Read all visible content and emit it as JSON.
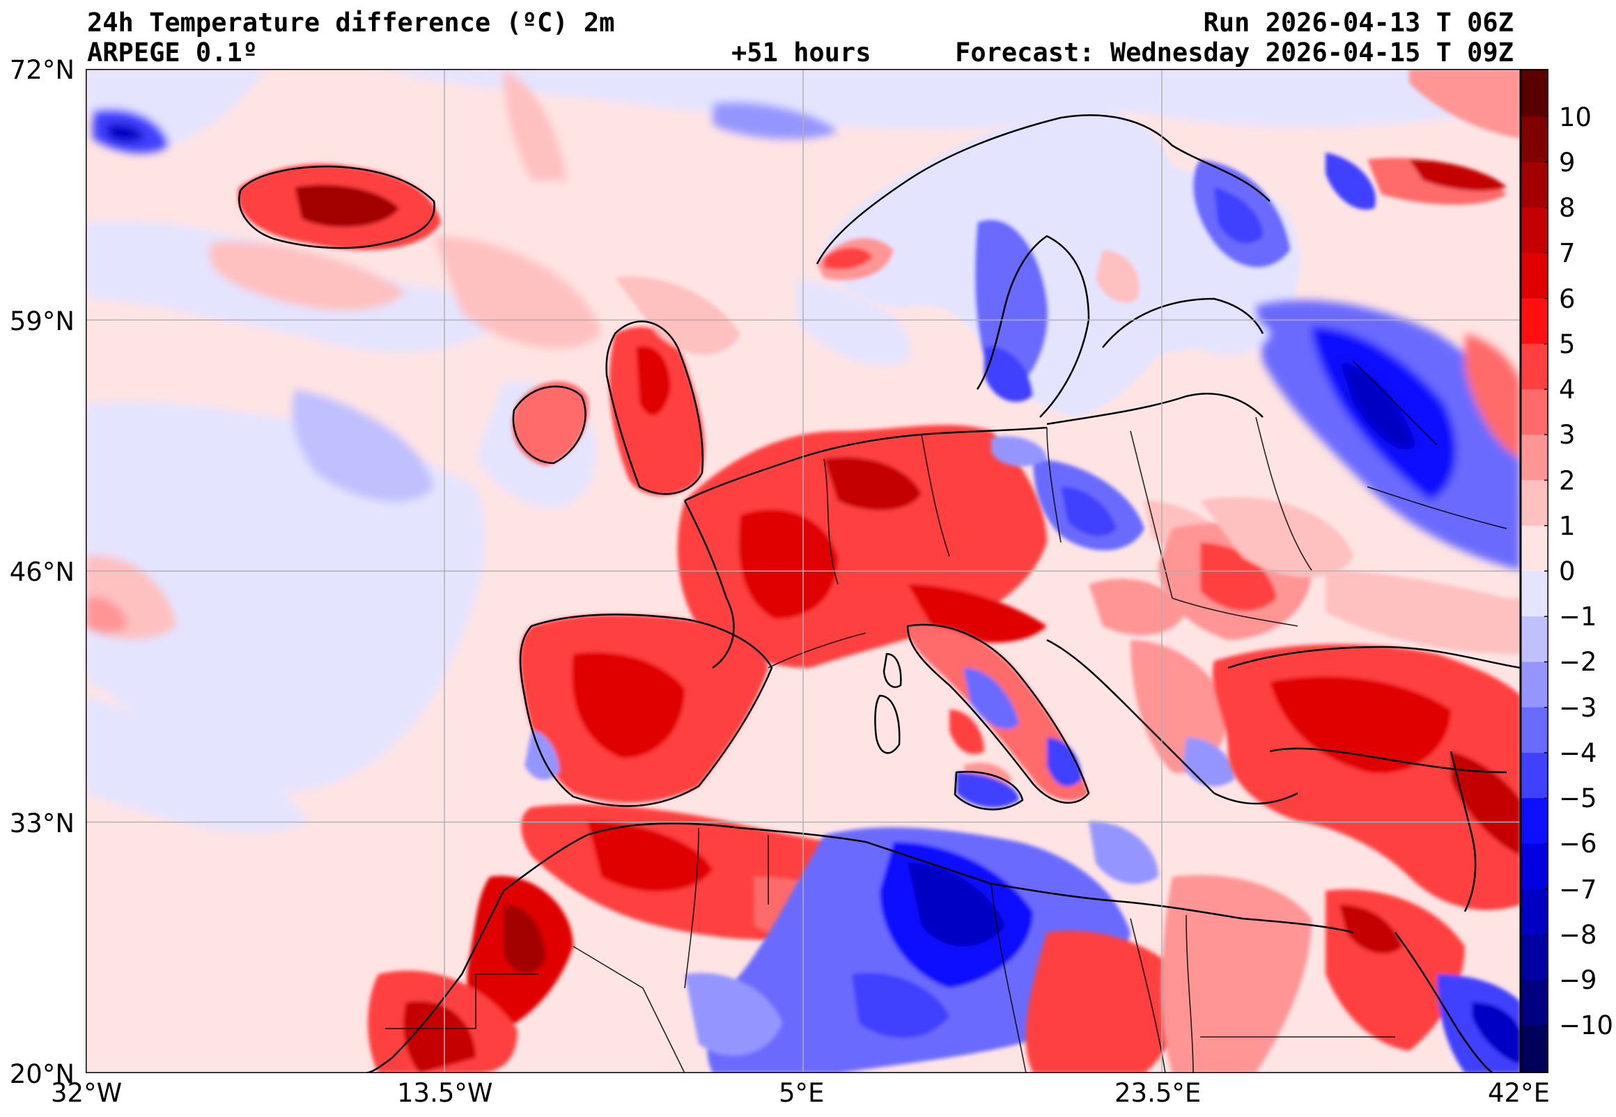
{
  "header": {
    "title": "24h Temperature difference (ºC) 2m",
    "model": "ARPEGE 0.1º",
    "lead_time": "+51 hours",
    "run": "Run 2026-04-13 T 06Z",
    "forecast": "Forecast: Wednesday 2026-04-15 T 09Z"
  },
  "axes": {
    "lat_ticks": [
      "72°N",
      "59°N",
      "46°N",
      "33°N",
      "20°N"
    ],
    "lon_ticks": [
      "32°W",
      "13.5°W",
      "5°E",
      "23.5°E",
      "42°E"
    ],
    "lat_range": [
      20,
      72
    ],
    "lon_range": [
      -32,
      42
    ]
  },
  "colorbar": {
    "labels": [
      "10",
      "9",
      "8",
      "7",
      "6",
      "5",
      "4",
      "3",
      "2",
      "1",
      "0",
      "−1",
      "−2",
      "−3",
      "−4",
      "−5",
      "−6",
      "−7",
      "−8",
      "−9",
      "−10"
    ],
    "colors": [
      "#5a0000",
      "#800000",
      "#a30000",
      "#c40000",
      "#e00000",
      "#ff0f0f",
      "#ff4040",
      "#ff6a6a",
      "#ff9595",
      "#ffc0c0",
      "#ffe4e4",
      "#e4e4ff",
      "#c0c0ff",
      "#9595ff",
      "#6a6aff",
      "#4040ff",
      "#0f0fff",
      "#0000e0",
      "#0000c4",
      "#0000a3",
      "#000080",
      "#00005a"
    ]
  },
  "map": {
    "ocean_color": "#ffe4e4",
    "accent_warm": "#ff4040",
    "accent_cold": "#4040ff"
  }
}
